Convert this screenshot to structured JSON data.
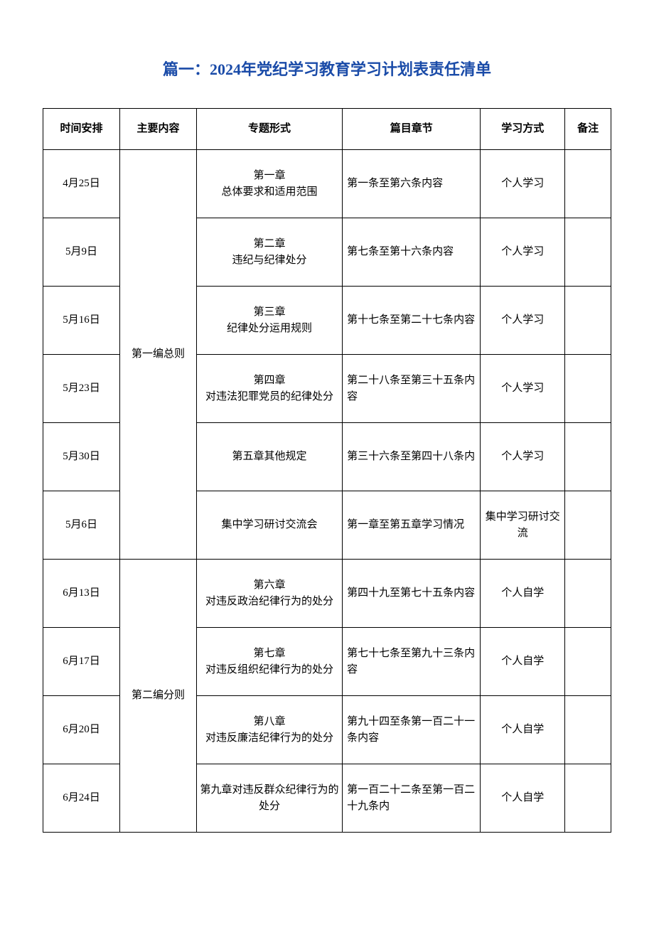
{
  "title": "篇一：2024年党纪学习教育学习计划表责任清单",
  "table": {
    "headers": {
      "col1": "时间安排",
      "col2": "主要内容",
      "col3": "专题形式",
      "col4": "篇目章节",
      "col5": "学习方式",
      "col6": "备注"
    },
    "group1_content": "第一编总则",
    "group2_content": "第二编分则",
    "rows": [
      {
        "date": "4月25日",
        "topic": "第一章\n总体要求和适用范围",
        "chapter": "第一条至第六条内容",
        "method": "个人学习",
        "remark": ""
      },
      {
        "date": "5月9日",
        "topic": "第二章\n违纪与纪律处分",
        "chapter": "第七条至第十六条内容",
        "method": "个人学习",
        "remark": ""
      },
      {
        "date": "5月16日",
        "topic": "第三章\n纪律处分运用规则",
        "chapter": "第十七条至第二十七条内容",
        "method": "个人学习",
        "remark": ""
      },
      {
        "date": "5月23日",
        "topic": "第四章\n对违法犯罪党员的纪律处分",
        "chapter": "第二十八条至第三十五条内容",
        "method": "个人学习",
        "remark": ""
      },
      {
        "date": "5月30日",
        "topic": "第五章其他规定",
        "chapter": "第三十六条至第四十八条内",
        "method": "个人学习",
        "remark": ""
      },
      {
        "date": "5月6日",
        "topic": "集中学习研讨交流会",
        "chapter": "第一章至第五章学习情况",
        "method": "集中学习研讨交流",
        "remark": ""
      },
      {
        "date": "6月13日",
        "topic": "第六章\n对违反政治纪律行为的处分",
        "chapter": "第四十九至第七十五条内容",
        "method": "个人自学",
        "remark": ""
      },
      {
        "date": "6月17日",
        "topic": "第七章\n对违反组织纪律行为的处分",
        "chapter": "第七十七条至第九十三条内容",
        "method": "个人自学",
        "remark": ""
      },
      {
        "date": "6月20日",
        "topic": "第八章\n对违反廉洁纪律行为的处分",
        "chapter": "第九十四至条第一百二十一条内容",
        "method": "个人自学",
        "remark": ""
      },
      {
        "date": "6月24日",
        "topic": "第九章对违反群众纪律行为的处分",
        "chapter": "第一百二十二条至第一百二十九条内",
        "method": "个人自学",
        "remark": ""
      }
    ]
  },
  "styles": {
    "title_color": "#1a4ba8",
    "border_color": "#000000",
    "text_color": "#000000",
    "background_color": "#ffffff",
    "title_fontsize": 22,
    "body_fontsize": 15
  }
}
